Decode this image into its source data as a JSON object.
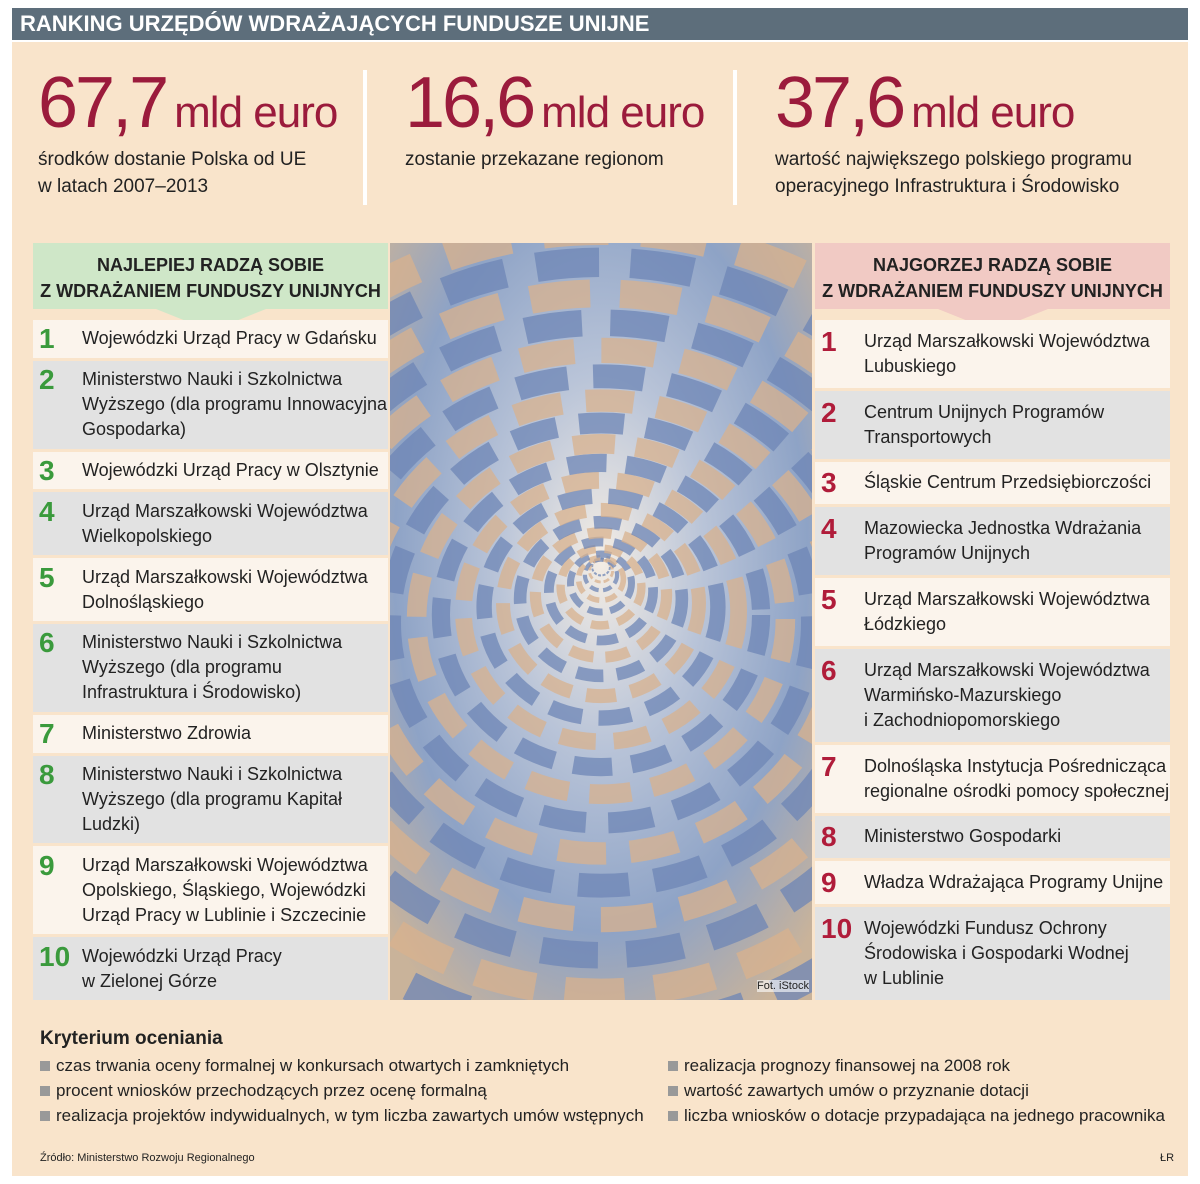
{
  "header": {
    "title": "RANKING URZĘDÓW WDRAŻAJĄCYCH FUNDUSZE UNIJNE"
  },
  "stats": [
    {
      "value": "67,7",
      "unit": "mld euro",
      "lines": [
        "środków dostanie Polska od UE",
        "w latach 2007–2013"
      ]
    },
    {
      "value": "16,6",
      "unit": "mld euro",
      "lines": [
        "zostanie przekazane regionom"
      ]
    },
    {
      "value": "37,6",
      "unit": "mld euro",
      "lines": [
        "wartość największego polskiego programu",
        "operacyjnego Infrastruktura i Środowisko"
      ]
    }
  ],
  "best": {
    "heading": [
      "NAJLEPIEJ RADZĄ SOBIE",
      "Z WDRAŻANIEM FUNDUSZY UNIJNYCH"
    ],
    "items": [
      {
        "rank": 1,
        "lines": [
          "Wojewódzki Urząd Pracy w Gdańsku"
        ]
      },
      {
        "rank": 2,
        "lines": [
          "Ministerstwo Nauki i Szkolnictwa",
          "Wyższego (dla programu Innowacyjna",
          "Gospodarka)"
        ]
      },
      {
        "rank": 3,
        "lines": [
          "Wojewódzki Urząd Pracy w Olsztynie"
        ]
      },
      {
        "rank": 4,
        "lines": [
          "Urząd Marszałkowski Województwa",
          "Wielkopolskiego"
        ]
      },
      {
        "rank": 5,
        "lines": [
          "Urząd Marszałkowski Województwa",
          "Dolnośląskiego"
        ]
      },
      {
        "rank": 6,
        "lines": [
          "Ministerstwo Nauki i Szkolnictwa",
          "Wyższego (dla programu",
          "Infrastruktura i Środowisko)"
        ]
      },
      {
        "rank": 7,
        "lines": [
          "Ministerstwo Zdrowia"
        ]
      },
      {
        "rank": 8,
        "lines": [
          "Ministerstwo Nauki i Szkolnictwa",
          "Wyższego (dla programu Kapitał",
          "Ludzki)"
        ]
      },
      {
        "rank": 9,
        "lines": [
          "Urząd Marszałkowski Województwa",
          "Opolskiego, Śląskiego, Wojewódzki",
          "Urząd Pracy w Lublinie i Szczecinie"
        ]
      },
      {
        "rank": 10,
        "lines": [
          "Wojewódzki Urząd Pracy",
          "w Zielonej Górze"
        ]
      }
    ]
  },
  "worst": {
    "heading": [
      "NAJGORZEJ RADZĄ SOBIE",
      "Z WDRAŻANIEM FUNDUSZY UNIJNYCH"
    ],
    "items": [
      {
        "rank": 1,
        "lines": [
          "Urząd Marszałkowski Województwa",
          "Lubuskiego"
        ]
      },
      {
        "rank": 2,
        "lines": [
          "Centrum Unijnych Programów",
          "Transportowych"
        ]
      },
      {
        "rank": 3,
        "lines": [
          "Śląskie Centrum Przedsiębiorczości"
        ]
      },
      {
        "rank": 4,
        "lines": [
          "Mazowiecka Jednostka Wdrażania",
          "Programów Unijnych"
        ]
      },
      {
        "rank": 5,
        "lines": [
          "Urząd Marszałkowski Województwa",
          "Łódzkiego"
        ]
      },
      {
        "rank": 6,
        "lines": [
          "Urząd Marszałkowski Województwa",
          "Warmińsko-Mazurskiego",
          "i Zachodniopomorskiego"
        ]
      },
      {
        "rank": 7,
        "lines": [
          "Dolnośląska Instytucja Pośrednicząca",
          "regionalne ośrodki pomocy społecznej"
        ]
      },
      {
        "rank": 8,
        "lines": [
          "Ministerstwo Gospodarki"
        ]
      },
      {
        "rank": 9,
        "lines": [
          "Władza Wdrażająca Programy Unijne"
        ]
      },
      {
        "rank": 10,
        "lines": [
          "Wojewódzki Fundusz Ochrony",
          "Środowiska i Gospodarki Wodnej",
          "w Lublinie"
        ]
      }
    ]
  },
  "photo": {
    "credit": "Fot. iStock"
  },
  "criteria": {
    "title": "Kryterium oceniania",
    "left": [
      "czas trwania oceny formalnej w konkursach otwartych i zamkniętych",
      "procent wniosków przechodzących przez ocenę formalną",
      "realizacja projektów indywidualnych, w tym liczba zawartych umów wstępnych"
    ],
    "right": [
      "realizacja prognozy finansowej na 2008 rok",
      "wartość zawartych umów o przyznanie dotacji",
      "liczba wniosków o dotacje przypadająca na jednego pracownika"
    ]
  },
  "footer": {
    "source": "Źródło: Ministerstwo Rozwoju Regionalnego",
    "author": "ŁR"
  }
}
